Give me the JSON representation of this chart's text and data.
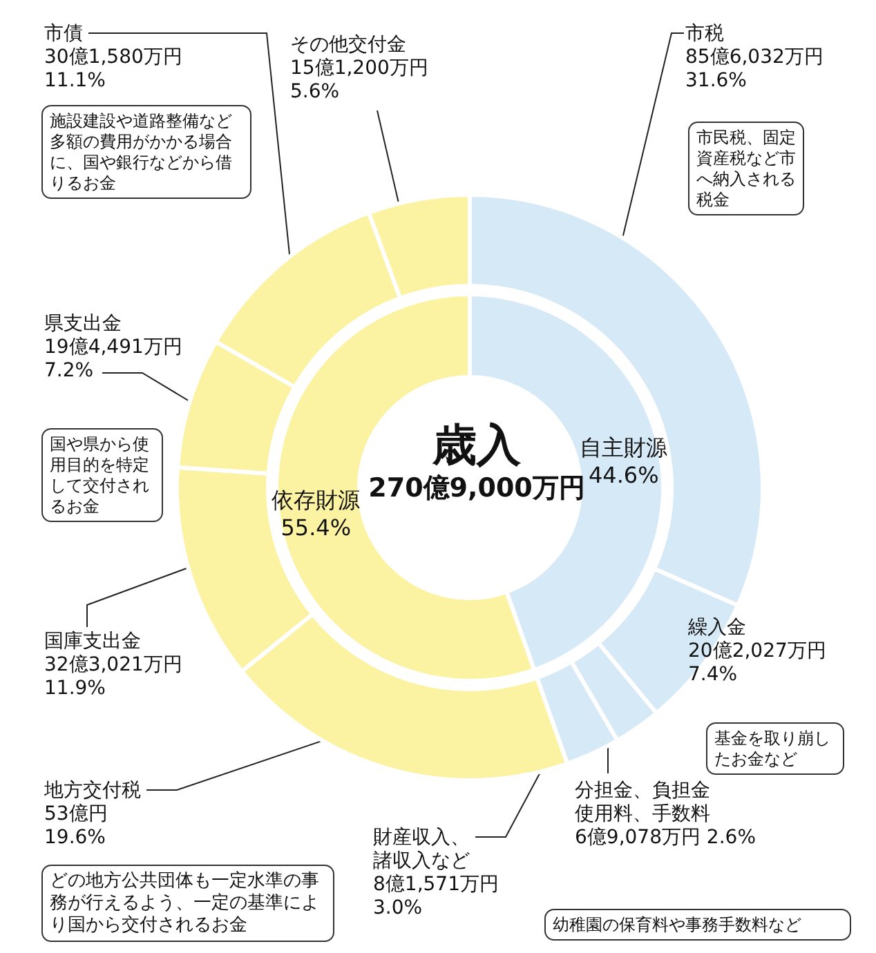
{
  "chart_data": [
    {
      "type": "donut",
      "title": "歳入",
      "subtitle": "270億9,000万円",
      "categories": [
        "自主財源",
        "依存財源"
      ],
      "values": [
        44.6,
        55.4
      ],
      "colors": [
        "#d6e9f7",
        "#fbf2a2"
      ],
      "value_labels": [
        "44.6%",
        "55.4%"
      ]
    },
    {
      "type": "donut",
      "categories": [
        "市税",
        "繰入金",
        "分担金、負担金使用料、手数料",
        "財産収入、諸収入など",
        "地方交付税",
        "国庫支出金",
        "県支出金",
        "市債",
        "その他交付金"
      ],
      "values": [
        31.6,
        7.4,
        2.6,
        3.0,
        19.6,
        11.9,
        7.2,
        11.1,
        5.6
      ],
      "colors": [
        "#d6e9f7",
        "#d6e9f7",
        "#d6e9f7",
        "#d6e9f7",
        "#fbf2a2",
        "#fbf2a2",
        "#fbf2a2",
        "#fbf2a2",
        "#fbf2a2"
      ],
      "value_labels": [
        "85億6,032万円\n31.6%",
        "20億2,027万円\n7.4%",
        "6億9,078万円 2.6%",
        "8億1,571万円\n3.0%",
        "53億円\n19.6%",
        "32億3,021万円\n11.9%",
        "19億4,491万円\n7.2%",
        "30億1,580万円\n11.1%",
        "15億1,200万円\n5.6%"
      ],
      "annotations": [
        "施設建設や道路整備など多額の費用がかかる場合に、国や銀行などから借りるお金",
        "市民税、固定資産税など市へ納入される税金",
        "国や県から使用目的を特定して交付されるお金",
        "基金を取り崩したお金など",
        "どの地方公共団体も一定水準の事務が行えるよう、一定の基準により国から交付されるお金",
        "幼稚園の保育料や事務手数料など"
      ]
    }
  ]
}
